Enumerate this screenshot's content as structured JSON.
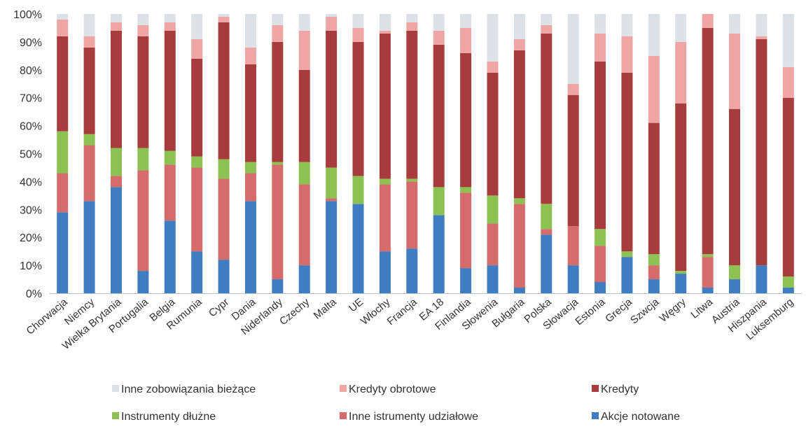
{
  "chart_data": {
    "type": "bar",
    "stacked": true,
    "categories": [
      "Chorwacja",
      "Niemcy",
      "Wielka Brytania",
      "Portugalia",
      "Belgia",
      "Rumunia",
      "Cypr",
      "Dania",
      "Niderlandy",
      "Czechy",
      "Malta",
      "UE",
      "Włochy",
      "Francja",
      "EA 18",
      "Finlandia",
      "Słowenia",
      "Bułgaria",
      "Polska",
      "Słowacja",
      "Estonia",
      "Grecja",
      "Szwcja",
      "Węgry",
      "Litwa",
      "Austria",
      "Hiszpania",
      "Luksemburg"
    ],
    "y_ticks": [
      "0%",
      "10%",
      "20%",
      "30%",
      "40%",
      "50%",
      "60%",
      "70%",
      "80%",
      "90%",
      "100%"
    ],
    "ylim": [
      0,
      100
    ],
    "grid": false,
    "legend_position": "bottom",
    "series": [
      {
        "name": "Akcje notowane",
        "color": "#3f7dc2",
        "values": [
          29,
          33,
          38,
          8,
          26,
          15,
          12,
          33,
          5,
          10,
          33,
          32,
          15,
          16,
          28,
          9,
          10,
          2,
          21,
          10,
          4,
          13,
          5,
          7,
          2,
          5,
          10,
          2
        ]
      },
      {
        "name": "Inne istrumenty udziałowe",
        "color": "#d66b6b",
        "values": [
          14,
          20,
          4,
          36,
          20,
          30,
          29,
          10,
          41,
          29,
          1,
          0,
          24,
          24,
          0,
          27,
          15,
          30,
          2,
          14,
          13,
          0,
          5,
          0,
          11,
          0,
          0,
          0
        ]
      },
      {
        "name": "Instrumenty dłużne",
        "color": "#8cc251",
        "values": [
          15,
          4,
          10,
          8,
          5,
          4,
          7,
          4,
          1,
          8,
          11,
          10,
          2,
          1,
          10,
          2,
          10,
          2,
          9,
          0,
          6,
          2,
          4,
          1,
          1,
          5,
          0,
          4
        ]
      },
      {
        "name": "Kredyty",
        "color": "#a83c3c",
        "values": [
          34,
          31,
          42,
          40,
          43,
          35,
          49,
          35,
          43,
          33,
          49,
          48,
          52,
          53,
          51,
          48,
          44,
          53,
          61,
          47,
          60,
          64,
          47,
          60,
          81,
          56,
          81,
          64
        ]
      },
      {
        "name": "Kredyty obrotowe",
        "color": "#f0a5a5",
        "values": [
          6,
          4,
          3,
          4,
          3,
          7,
          2,
          6,
          6,
          14,
          5,
          5,
          1,
          3,
          5,
          9,
          4,
          4,
          3,
          4,
          10,
          13,
          24,
          22,
          5,
          27,
          1,
          11
        ]
      },
      {
        "name": "Inne zobowiązania bieżące",
        "color": "#dde2e8",
        "values": [
          2,
          8,
          3,
          4,
          3,
          9,
          1,
          12,
          4,
          6,
          1,
          5,
          6,
          3,
          6,
          5,
          17,
          9,
          4,
          25,
          7,
          8,
          15,
          10,
          0,
          7,
          8,
          19
        ]
      }
    ]
  }
}
